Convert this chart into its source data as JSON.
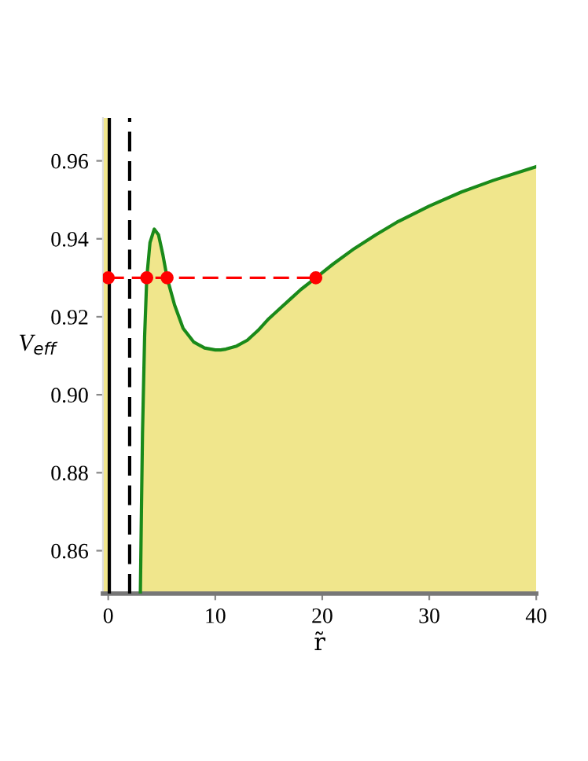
{
  "chart_data": {
    "type": "area",
    "xlabel": "r̃",
    "ylabel": "V$_{eff}$",
    "xlim": [
      -0.5,
      40
    ],
    "ylim": [
      0.849,
      0.971
    ],
    "xticks": [
      0,
      10,
      20,
      30,
      40
    ],
    "yticks": [
      0.86,
      0.88,
      {
        "value": 0.9,
        "label": "0.90"
      },
      0.92,
      0.94,
      0.96
    ],
    "grid": false,
    "legend": false,
    "series": [
      {
        "color": "#1a8a1a",
        "x": [
          3.0,
          3.1,
          3.2,
          3.4,
          3.6,
          3.9,
          4.3,
          4.7,
          5.1,
          5.5,
          6.2,
          7,
          8,
          9,
          10,
          10.5,
          11,
          12,
          13,
          14,
          15,
          16,
          17,
          18,
          19.4,
          21,
          23,
          25,
          27,
          30,
          33,
          36,
          40
        ],
        "values": [
          0.849,
          0.87,
          0.89,
          0.915,
          0.93,
          0.939,
          0.9425,
          0.941,
          0.936,
          0.93,
          0.923,
          0.917,
          0.9135,
          0.912,
          0.9115,
          0.9115,
          0.9117,
          0.9125,
          0.914,
          0.9165,
          0.9195,
          0.922,
          0.9245,
          0.927,
          0.93,
          0.9335,
          0.9375,
          0.941,
          0.9443,
          0.9484,
          0.952,
          0.955,
          0.9585
        ]
      },
      {
        "type": "line",
        "color": "#ff0000",
        "line_style": "dashed",
        "marker": "circle",
        "x": [
          0,
          3.6,
          5.5,
          19.4
        ],
        "values": [
          0.93,
          0.93,
          0.93,
          0.93
        ]
      }
    ],
    "bands": [
      {
        "axis": "x",
        "from": -0.5,
        "to": 0,
        "color": "#f0e68c"
      }
    ],
    "ref_lines": [
      {
        "axis": "x",
        "value": 0.1,
        "color": "#000000",
        "line_style": "solid"
      },
      {
        "axis": "x",
        "value": 2,
        "color": "#000000",
        "line_style": "dashed"
      }
    ]
  }
}
